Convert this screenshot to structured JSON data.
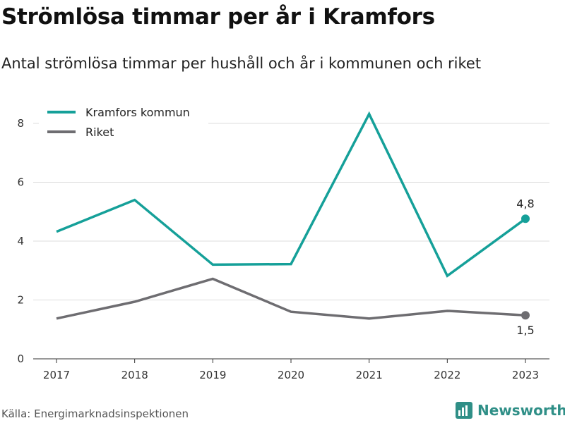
{
  "title": "Strömlösa timmar per år i Kramfors",
  "subtitle": "Antal strömlösa timmar per hushåll och år i kommunen och riket",
  "source": "Källa: Energimarknadsinspektionen",
  "brand": {
    "name": "Newsworthy",
    "icon": "newsworthy-logo-icon",
    "color": "#2f8f87"
  },
  "chart_data": {
    "type": "line",
    "x": [
      "2017",
      "2018",
      "2019",
      "2020",
      "2021",
      "2022",
      "2023"
    ],
    "ylim": [
      0,
      8.6
    ],
    "yticks": [
      "0",
      "2",
      "4",
      "6",
      "8"
    ],
    "grid": true,
    "legend_position": "top-left",
    "series": [
      {
        "name": "Kramfors kommun",
        "color": "#15a099",
        "values": [
          4.32,
          5.4,
          3.2,
          3.22,
          8.32,
          2.82,
          4.76
        ],
        "end_label": "4,8"
      },
      {
        "name": "Riket",
        "color": "#6e6d71",
        "values": [
          1.37,
          1.94,
          2.72,
          1.6,
          1.37,
          1.63,
          1.48
        ],
        "end_label": "1,5"
      }
    ]
  }
}
